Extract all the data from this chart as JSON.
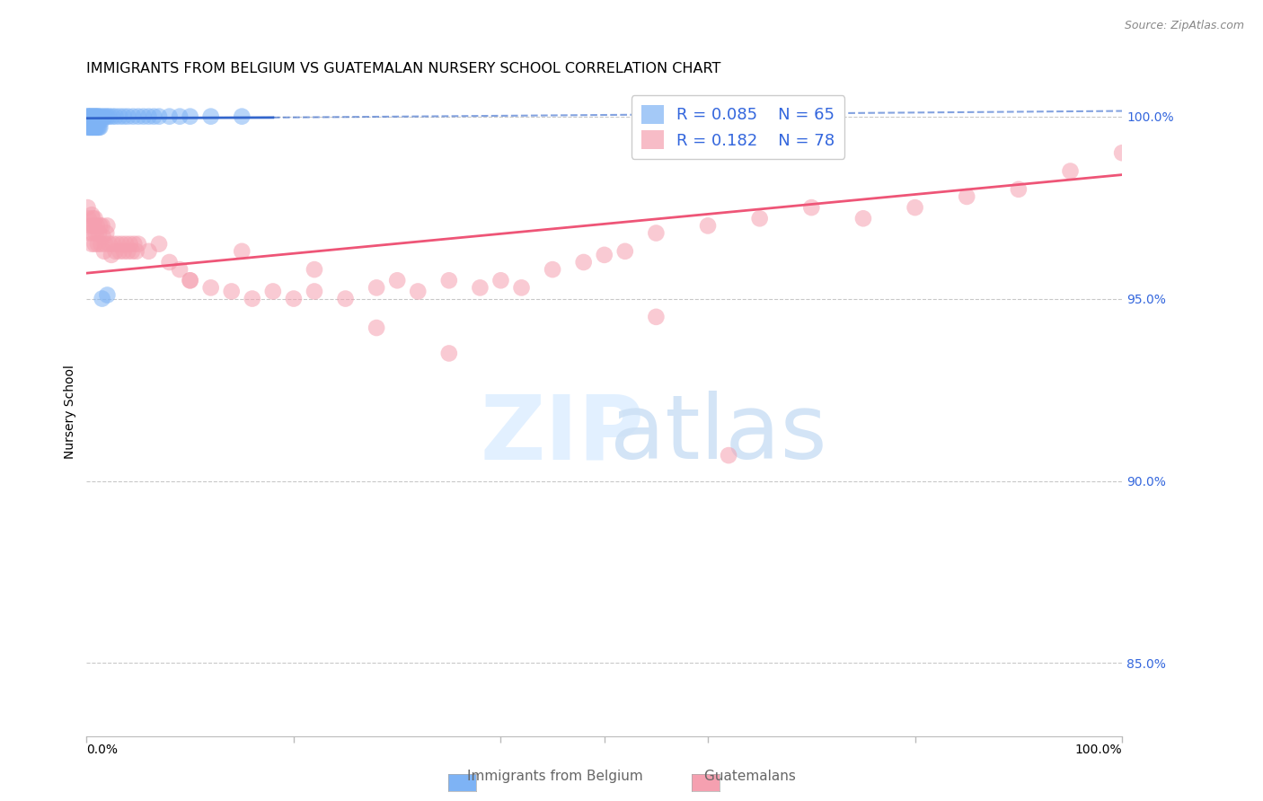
{
  "title": "IMMIGRANTS FROM BELGIUM VS GUATEMALAN NURSERY SCHOOL CORRELATION CHART",
  "source": "Source: ZipAtlas.com",
  "ylabel": "Nursery School",
  "right_yticks": [
    "100.0%",
    "95.0%",
    "90.0%",
    "85.0%"
  ],
  "right_ytick_vals": [
    1.0,
    0.95,
    0.9,
    0.85
  ],
  "legend_blue_r": "R = ",
  "legend_blue_r_val": "0.085",
  "legend_blue_n": "N = ",
  "legend_blue_n_val": "65",
  "legend_pink_r": "R = ",
  "legend_pink_r_val": "0.182",
  "legend_pink_n": "N = ",
  "legend_pink_n_val": "78",
  "blue_color": "#7eb3f5",
  "pink_color": "#f5a0b0",
  "trendline_blue_color": "#3366cc",
  "trendline_pink_color": "#ee5577",
  "grid_color": "#bbbbbb",
  "background_color": "#ffffff",
  "right_tick_color": "#3366dd",
  "title_fontsize": 11.5,
  "source_fontsize": 9,
  "axis_label_fontsize": 10,
  "tick_fontsize": 10,
  "legend_fontsize": 13,
  "xlim": [
    0.0,
    1.0
  ],
  "ylim": [
    0.83,
    1.008
  ],
  "blue_trend": [
    0.0,
    0.18,
    1.0
  ],
  "blue_trend_y": [
    0.9995,
    0.9997,
    1.001
  ],
  "pink_trend_x": [
    0.0,
    1.0
  ],
  "pink_trend_y": [
    0.957,
    0.984
  ],
  "blue_scatter_x": [
    0.001,
    0.001,
    0.001,
    0.001,
    0.001,
    0.002,
    0.002,
    0.002,
    0.003,
    0.003,
    0.003,
    0.004,
    0.004,
    0.005,
    0.005,
    0.006,
    0.006,
    0.007,
    0.007,
    0.008,
    0.008,
    0.009,
    0.009,
    0.01,
    0.01,
    0.011,
    0.012,
    0.013,
    0.014,
    0.015,
    0.016,
    0.018,
    0.02,
    0.022,
    0.025,
    0.028,
    0.032,
    0.036,
    0.04,
    0.045,
    0.05,
    0.055,
    0.06,
    0.065,
    0.07,
    0.08,
    0.09,
    0.1,
    0.12,
    0.15,
    0.001,
    0.002,
    0.003,
    0.004,
    0.005,
    0.006,
    0.007,
    0.008,
    0.009,
    0.01,
    0.011,
    0.012,
    0.013,
    0.015,
    0.02
  ],
  "blue_scatter_y": [
    1.0,
    1.0,
    0.999,
    0.999,
    0.998,
    1.0,
    0.999,
    0.998,
    1.0,
    0.999,
    0.998,
    1.0,
    0.999,
    1.0,
    0.999,
    1.0,
    0.999,
    1.0,
    0.999,
    1.0,
    0.999,
    1.0,
    0.999,
    1.0,
    0.999,
    1.0,
    1.0,
    0.999,
    1.0,
    0.999,
    1.0,
    1.0,
    1.0,
    1.0,
    1.0,
    1.0,
    1.0,
    1.0,
    1.0,
    1.0,
    1.0,
    1.0,
    1.0,
    1.0,
    1.0,
    1.0,
    1.0,
    1.0,
    1.0,
    1.0,
    0.997,
    0.997,
    0.997,
    0.997,
    0.997,
    0.997,
    0.997,
    0.997,
    0.997,
    0.997,
    0.997,
    0.997,
    0.997,
    0.95,
    0.951
  ],
  "pink_scatter_x": [
    0.001,
    0.002,
    0.003,
    0.004,
    0.005,
    0.005,
    0.006,
    0.006,
    0.007,
    0.008,
    0.008,
    0.009,
    0.01,
    0.011,
    0.012,
    0.013,
    0.014,
    0.015,
    0.016,
    0.017,
    0.018,
    0.019,
    0.02,
    0.022,
    0.024,
    0.026,
    0.028,
    0.03,
    0.032,
    0.034,
    0.036,
    0.038,
    0.04,
    0.042,
    0.044,
    0.046,
    0.048,
    0.05,
    0.06,
    0.07,
    0.08,
    0.09,
    0.1,
    0.12,
    0.14,
    0.16,
    0.18,
    0.2,
    0.22,
    0.25,
    0.28,
    0.3,
    0.32,
    0.35,
    0.38,
    0.4,
    0.42,
    0.45,
    0.48,
    0.5,
    0.52,
    0.55,
    0.6,
    0.65,
    0.7,
    0.75,
    0.8,
    0.85,
    0.9,
    0.95,
    1.0,
    0.55,
    0.62,
    0.35,
    0.28,
    0.22,
    0.15,
    0.1
  ],
  "pink_scatter_y": [
    0.975,
    0.972,
    0.968,
    0.97,
    0.965,
    0.973,
    0.968,
    0.972,
    0.97,
    0.965,
    0.972,
    0.968,
    0.97,
    0.965,
    0.968,
    0.97,
    0.965,
    0.97,
    0.967,
    0.963,
    0.965,
    0.968,
    0.97,
    0.965,
    0.962,
    0.965,
    0.963,
    0.965,
    0.963,
    0.965,
    0.963,
    0.965,
    0.963,
    0.965,
    0.963,
    0.965,
    0.963,
    0.965,
    0.963,
    0.965,
    0.96,
    0.958,
    0.955,
    0.953,
    0.952,
    0.95,
    0.952,
    0.95,
    0.952,
    0.95,
    0.953,
    0.955,
    0.952,
    0.955,
    0.953,
    0.955,
    0.953,
    0.958,
    0.96,
    0.962,
    0.963,
    0.968,
    0.97,
    0.972,
    0.975,
    0.972,
    0.975,
    0.978,
    0.98,
    0.985,
    0.99,
    0.945,
    0.907,
    0.935,
    0.942,
    0.958,
    0.963,
    0.955
  ]
}
